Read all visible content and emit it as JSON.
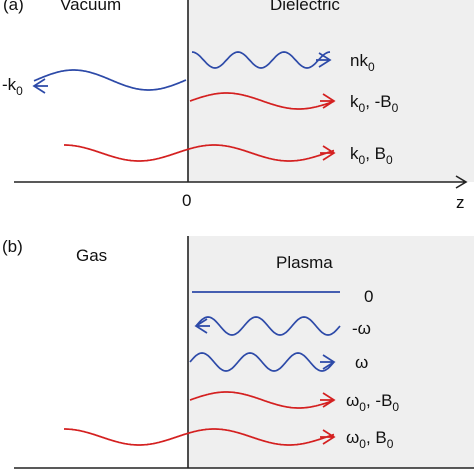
{
  "colors": {
    "red": "#d42020",
    "blue": "#2d4aa8",
    "shade": "#efefef",
    "ink": "#222222"
  },
  "panel_a": {
    "tag": "(a)",
    "left_region": "Vacuum",
    "right_region": "Dielectric",
    "origin_label": "0",
    "axis_label": "z",
    "waves": [
      {
        "main": "nk",
        "sub": "0",
        "rest": ""
      },
      {
        "main": "-k",
        "sub": "0",
        "rest": ""
      },
      {
        "main": "k",
        "sub": "0",
        "rest": ", -B",
        "sub2": "0"
      },
      {
        "main": "k",
        "sub": "0",
        "rest": ", B",
        "sub2": "0"
      }
    ]
  },
  "panel_b": {
    "tag": "(b)",
    "left_region": "Gas",
    "right_region": "Plasma",
    "waves": [
      {
        "main": "0",
        "sub": "",
        "rest": ""
      },
      {
        "main": "-ω",
        "sub": "",
        "rest": ""
      },
      {
        "main": "ω",
        "sub": "",
        "rest": ""
      },
      {
        "main": "ω",
        "sub": "0",
        "rest": ", -B",
        "sub2": "0"
      },
      {
        "main": "ω",
        "sub": "0",
        "rest": ", B",
        "sub2": "0"
      }
    ]
  }
}
